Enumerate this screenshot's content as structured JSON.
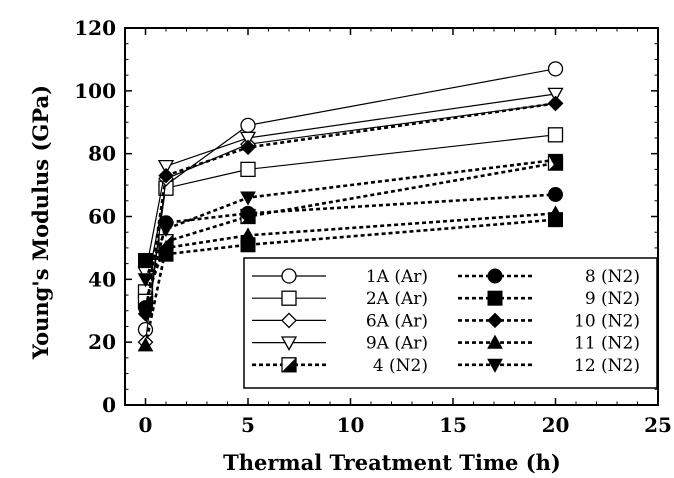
{
  "chart_data": {
    "type": "line",
    "title": "",
    "xlabel": "Thermal Treatment Time (h)",
    "ylabel": "Young's Modulus (GPa)",
    "xlim": [
      -1,
      25
    ],
    "ylim": [
      0,
      120
    ],
    "x_ticks": [
      0,
      5,
      10,
      15,
      20,
      25
    ],
    "y_ticks": [
      0,
      20,
      40,
      60,
      80,
      100,
      120
    ],
    "grid": false,
    "legend_position": "bottom-right",
    "x": [
      0,
      1,
      5,
      20
    ],
    "series": [
      {
        "name": "1A (Ar)",
        "marker": "circle-open",
        "line": "solid",
        "values": [
          24,
          70,
          89,
          107
        ]
      },
      {
        "name": "2A (Ar)",
        "marker": "square-open",
        "line": "solid",
        "values": [
          36,
          69,
          75,
          86
        ]
      },
      {
        "name": "6A (Ar)",
        "marker": "diamond-open",
        "line": "solid",
        "values": [
          20,
          72,
          83,
          96
        ]
      },
      {
        "name": "9A (Ar)",
        "marker": "triangle-down-open",
        "line": "solid",
        "values": [
          42,
          76,
          85,
          99
        ]
      },
      {
        "name": "4 (N2)",
        "marker": "square-half",
        "line": "dotted",
        "values": [
          33,
          52,
          60,
          77
        ]
      },
      {
        "name": "8 (N2)",
        "marker": "circle-filled",
        "line": "dotted",
        "values": [
          31,
          58,
          61,
          67
        ]
      },
      {
        "name": "9 (N2)",
        "marker": "square-filled",
        "line": "dotted",
        "values": [
          46,
          48,
          51,
          59
        ]
      },
      {
        "name": "10 (N2)",
        "marker": "diamond-filled",
        "line": "dotted",
        "values": [
          29,
          73,
          82,
          96
        ]
      },
      {
        "name": "11 (N2)",
        "marker": "triangle-up-filled",
        "line": "dotted",
        "values": [
          19,
          50,
          54,
          61
        ]
      },
      {
        "name": "12 (N2)",
        "marker": "triangle-down-filled",
        "line": "dotted",
        "values": [
          40,
          56,
          66,
          78
        ]
      }
    ]
  }
}
